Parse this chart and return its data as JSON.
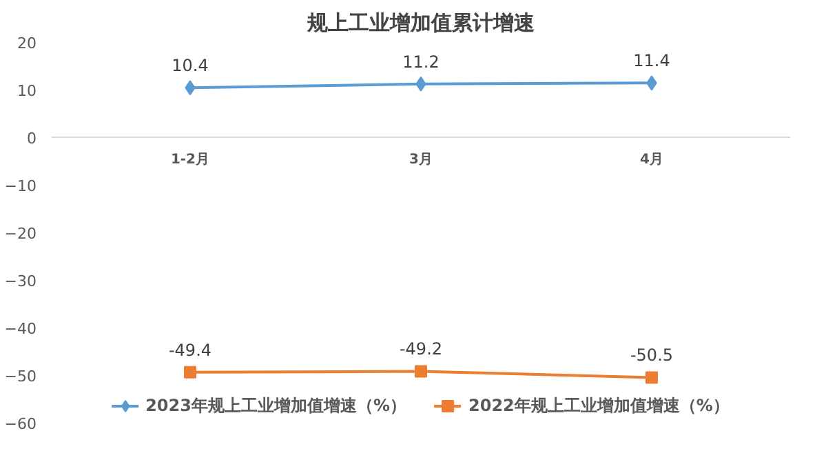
{
  "chart_data": {
    "type": "line",
    "title": "规上工业增加值累计增速",
    "categories": [
      "1-2月",
      "3月",
      "4月"
    ],
    "series": [
      {
        "name": "2023年规上工业增加值增速（%）",
        "color": "#5b9bd5",
        "values": [
          10.4,
          11.2,
          11.4
        ],
        "marker": "diamond"
      },
      {
        "name": "2022年规上工业增加值增速（%）",
        "color": "#ed7d31",
        "values": [
          -49.4,
          -49.2,
          -50.5
        ],
        "marker": "square"
      }
    ],
    "ylim": [
      -60,
      20
    ],
    "yticks": [
      -60,
      -50,
      -40,
      -30,
      -20,
      -10,
      0,
      10,
      20
    ],
    "grid": false,
    "legend": "bottom",
    "data_labels": true,
    "line_style": "solid"
  }
}
